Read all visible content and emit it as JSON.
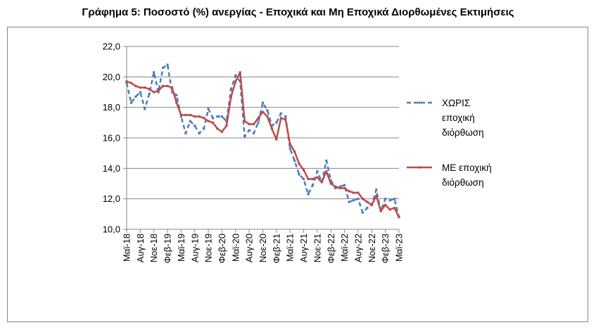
{
  "title": "Γράφημα 5: Ποσοστό (%) ανεργίας - Εποχικά και Μη Εποχικά Διορθωμένες Εκτιμήσεις",
  "chart_data": {
    "type": "line",
    "title": "Γράφημα 5: Ποσοστό (%) ανεργίας - Εποχικά και Μη Εποχικά Διορθωμένες Εκτιμήσεις",
    "xlabel": "",
    "ylabel": "",
    "ylim": [
      10.0,
      22.0
    ],
    "yticks": [
      "10,0",
      "12,0",
      "14,0",
      "16,0",
      "18,0",
      "20,0",
      "22,0"
    ],
    "xtick_labels": [
      "Μαϊ-18",
      "Αυγ-18",
      "Νοε-18",
      "Φεβ-19",
      "Μαϊ-19",
      "Αυγ-19",
      "Νοε-19",
      "Φεβ-20",
      "Μαϊ-20",
      "Αυγ-20",
      "Νοε-20",
      "Φεβ-21",
      "Μαϊ-21",
      "Αυγ-21",
      "Νοε-21",
      "Φεβ-22",
      "Μαϊ-22",
      "Αυγ-22",
      "Νοε-22",
      "Φεβ-23",
      "Μαϊ-23"
    ],
    "x": [
      "05/2018",
      "06/2018",
      "07/2018",
      "08/2018",
      "09/2018",
      "10/2018",
      "11/2018",
      "12/2018",
      "01/2019",
      "02/2019",
      "03/2019",
      "04/2019",
      "05/2019",
      "06/2019",
      "07/2019",
      "08/2019",
      "09/2019",
      "10/2019",
      "11/2019",
      "12/2019",
      "01/2020",
      "02/2020",
      "03/2020",
      "04/2020",
      "05/2020",
      "06/2020",
      "07/2020",
      "08/2020",
      "09/2020",
      "10/2020",
      "11/2020",
      "12/2020",
      "01/2021",
      "02/2021",
      "03/2021",
      "04/2021",
      "05/2021",
      "06/2021",
      "07/2021",
      "08/2021",
      "09/2021",
      "10/2021",
      "11/2021",
      "12/2021",
      "01/2022",
      "02/2022",
      "03/2022",
      "04/2022",
      "05/2022",
      "06/2022",
      "07/2022",
      "08/2022",
      "09/2022",
      "10/2022",
      "11/2022",
      "12/2022",
      "01/2023",
      "02/2023",
      "03/2023",
      "04/2023",
      "05/2023"
    ],
    "grid": true,
    "legend_position": "right",
    "series": [
      {
        "name": "ΧΩΡΙΣ εποχική διόρθωση",
        "color": "#4a7ebb",
        "style": "dashed",
        "values": [
          19.6,
          18.3,
          18.7,
          19.0,
          17.9,
          18.9,
          20.3,
          19.0,
          20.6,
          20.8,
          19.0,
          18.8,
          17.4,
          16.3,
          17.1,
          16.8,
          16.3,
          16.6,
          17.9,
          17.3,
          17.4,
          17.4,
          17.1,
          19.2,
          20.1,
          19.7,
          16.1,
          16.5,
          16.3,
          17.0,
          18.3,
          17.8,
          16.8,
          17.0,
          17.6,
          17.4,
          15.3,
          14.5,
          13.6,
          13.3,
          12.3,
          12.9,
          13.8,
          13.1,
          14.5,
          13.2,
          12.7,
          12.8,
          12.9,
          11.8,
          11.9,
          12.0,
          11.1,
          11.4,
          11.6,
          12.6,
          11.2,
          12.0,
          11.9,
          12.0,
          10.8
        ]
      },
      {
        "name": "ΜΕ εποχική διόρθωση",
        "color": "#be4b48",
        "style": "solid",
        "values": [
          19.7,
          19.6,
          19.4,
          19.3,
          19.3,
          19.2,
          19.0,
          19.1,
          19.4,
          19.4,
          19.3,
          18.3,
          17.5,
          17.5,
          17.5,
          17.4,
          17.4,
          17.3,
          17.1,
          17.0,
          16.6,
          16.4,
          16.8,
          18.7,
          19.7,
          20.3,
          17.1,
          16.9,
          16.9,
          17.3,
          17.7,
          17.4,
          16.6,
          15.9,
          17.3,
          17.2,
          15.6,
          15.1,
          14.3,
          13.9,
          13.3,
          13.3,
          13.4,
          13.1,
          13.8,
          13.0,
          12.8,
          12.7,
          12.7,
          12.5,
          12.4,
          12.4,
          12.0,
          11.8,
          11.6,
          12.2,
          11.2,
          11.6,
          11.3,
          11.4,
          10.8
        ]
      }
    ]
  },
  "legend": {
    "items": [
      {
        "lines": [
          "ΧΩΡΙΣ",
          "εποχική",
          "διόρθωση"
        ]
      },
      {
        "lines": [
          "ΜΕ εποχική",
          "διόρθωση"
        ]
      }
    ]
  }
}
